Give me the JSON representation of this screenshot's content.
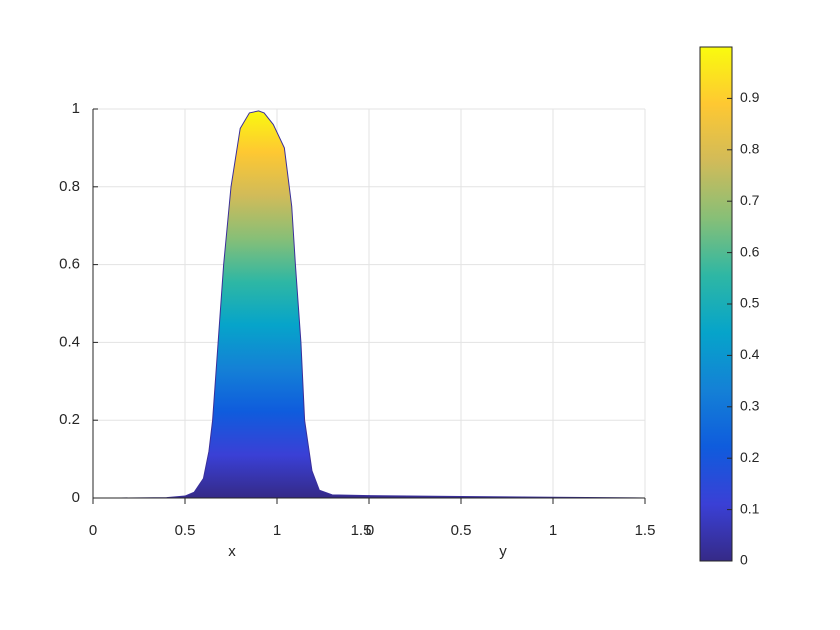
{
  "chart_data": {
    "type": "surface-profile",
    "x_axis": {
      "label": "x",
      "lim": [
        0,
        1.5
      ],
      "ticks": [
        0,
        0.5,
        1,
        1.5
      ]
    },
    "y_axis": {
      "label": "y",
      "lim": [
        0,
        1.5
      ],
      "ticks": [
        0,
        0.5,
        1,
        1.5
      ]
    },
    "zlim": [
      0,
      1
    ],
    "zticks": [
      0,
      0.2,
      0.4,
      0.6,
      0.8,
      1
    ],
    "grid": true,
    "x_profile": {
      "x": [
        0.15,
        0.4,
        0.5,
        0.55,
        0.6,
        0.63,
        0.65,
        0.68,
        0.71,
        0.75,
        0.8,
        0.85,
        0.9,
        0.93,
        0.98,
        1.04,
        1.08,
        1.1,
        1.13,
        1.15,
        1.19,
        1.23,
        1.3,
        1.5
      ],
      "values": [
        0,
        0.001,
        0.005,
        0.015,
        0.05,
        0.12,
        0.2,
        0.4,
        0.6,
        0.8,
        0.95,
        0.99,
        0.995,
        0.99,
        0.96,
        0.9,
        0.75,
        0.6,
        0.4,
        0.2,
        0.07,
        0.02,
        0.008,
        0.006
      ]
    },
    "y_profile": {
      "y": [
        0,
        0.5,
        1,
        1.5
      ],
      "values": [
        0.006,
        0.004,
        0.002,
        0
      ]
    },
    "colorbar": {
      "clim": [
        0,
        1
      ],
      "ticks": [
        0,
        0.1,
        0.2,
        0.3,
        0.4,
        0.5,
        0.6,
        0.7,
        0.8,
        0.9
      ],
      "colormap": [
        "#352a87",
        "#3a40d6",
        "#0f5cdd",
        "#1481d6",
        "#06a4ca",
        "#2eb7a4",
        "#87bf77",
        "#d1bb59",
        "#fec832",
        "#f9fb0e"
      ]
    }
  }
}
